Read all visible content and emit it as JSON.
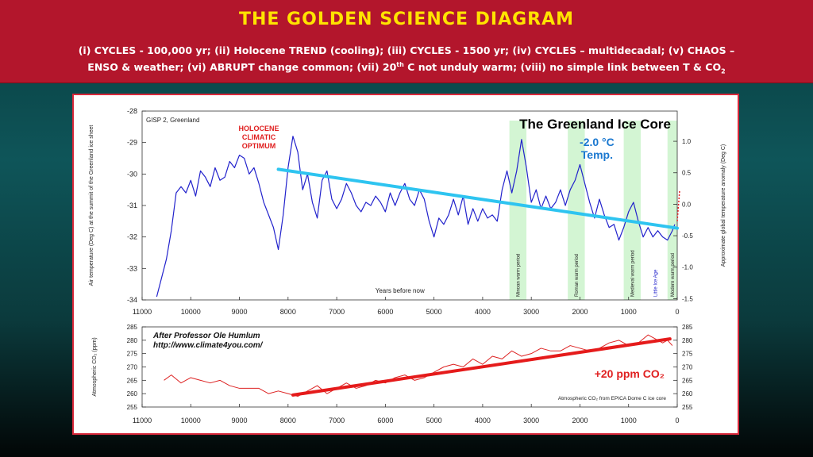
{
  "banner": {
    "title": "THE GOLDEN SCIENCE DIAGRAM",
    "subtitle_line1": "(i) CYCLES - 100,000 yr; (ii) Holocene TREND (cooling); (iii) CYCLES - 1500 yr; (iv) CYCLES – multidecadal; (v) CHAOS –",
    "subtitle_line2_pre": "ENSO & weather; (vi) ABRUPT change common; (vii) 20",
    "subtitle_line2_sup": "th",
    "subtitle_line2_mid": " C not unduly warm; (viii) no simple link between T & CO",
    "subtitle_line2_sub": "2"
  },
  "colors": {
    "banner_bg": "#b3162c",
    "banner_title": "#ffe300",
    "temp_line": "#2222cc",
    "trend_line": "#2ec4f0",
    "co2_line": "#dd2222",
    "co2_trend": "#e51b1b",
    "warm_band": "#d3f5d3"
  },
  "chart_data": [
    {
      "type": "line",
      "source_label": "GISP 2, Greenland",
      "title": "The Greenland Ice Core",
      "ylabel": "Air temperature (Deg C) at the summit of the Greenland ice sheet",
      "ylabel_right": "Approximate global temperature anomaly (Deg C)",
      "xlabel": "Years before now",
      "xlim": [
        11000,
        0
      ],
      "ylim": [
        -34,
        -28
      ],
      "xticks": [
        "11000",
        "10000",
        "9000",
        "8000",
        "7000",
        "6000",
        "5000",
        "4000",
        "3000",
        "2000",
        "1000",
        "0"
      ],
      "yticks_left": [
        "-28",
        "-29",
        "-30",
        "-31",
        "-32",
        "-33",
        "-34"
      ],
      "yticks_right": [
        "1.0",
        "0.5",
        "0.0",
        "-0.5",
        "-1.0",
        "-1.5"
      ],
      "annotations": {
        "holocene": [
          "HOLOCENE",
          "CLIMATIC",
          "OPTIMUM"
        ],
        "temp_change": "-2.0 °C",
        "temp_change_label": "Temp."
      },
      "warm_periods": [
        {
          "label": "Minoan warm period",
          "start": 3450,
          "end": 3100
        },
        {
          "label": "Roman warm period",
          "start": 2250,
          "end": 1900
        },
        {
          "label": "Medieval warm period",
          "start": 1100,
          "end": 750
        },
        {
          "label": "Modern warm period",
          "start": 200,
          "end": 0
        }
      ],
      "little_ice_age_label": "Little Ice Age",
      "series": [
        {
          "x": [
            10700,
            10600,
            10500,
            10400,
            10300,
            10200,
            10100,
            10000,
            9900,
            9800,
            9700,
            9600,
            9500,
            9400,
            9300,
            9200,
            9100,
            9000,
            8900,
            8800,
            8700,
            8600,
            8500,
            8400,
            8300,
            8200,
            8100,
            8000,
            7900,
            7800,
            7700,
            7600,
            7500,
            7400,
            7300,
            7200,
            7100,
            7000,
            6900,
            6800,
            6700,
            6600,
            6500,
            6400,
            6300,
            6200,
            6100,
            6000,
            5900,
            5800,
            5700,
            5600,
            5500,
            5400,
            5300,
            5200,
            5100,
            5000,
            4900,
            4800,
            4700,
            4600,
            4500,
            4400,
            4300,
            4200,
            4100,
            4000,
            3900,
            3800,
            3700,
            3600,
            3500,
            3400,
            3300,
            3200,
            3100,
            3000,
            2900,
            2800,
            2700,
            2600,
            2500,
            2400,
            2300,
            2200,
            2100,
            2000,
            1900,
            1800,
            1700,
            1600,
            1500,
            1400,
            1300,
            1200,
            1100,
            1000,
            900,
            800,
            700,
            600,
            500,
            400,
            300,
            200,
            100,
            50
          ],
          "y": [
            -33.9,
            -33.3,
            -32.7,
            -31.8,
            -30.6,
            -30.4,
            -30.6,
            -30.2,
            -30.7,
            -29.9,
            -30.1,
            -30.4,
            -29.8,
            -30.2,
            -30.1,
            -29.6,
            -29.8,
            -29.4,
            -29.5,
            -30.0,
            -29.8,
            -30.3,
            -30.9,
            -31.3,
            -31.7,
            -32.4,
            -31.3,
            -29.8,
            -28.8,
            -29.3,
            -30.5,
            -30.0,
            -30.9,
            -31.4,
            -30.2,
            -29.9,
            -30.8,
            -31.1,
            -30.8,
            -30.3,
            -30.6,
            -31.0,
            -31.2,
            -30.9,
            -31.0,
            -30.7,
            -30.9,
            -31.2,
            -30.6,
            -31.0,
            -30.6,
            -30.3,
            -30.8,
            -31.0,
            -30.5,
            -30.8,
            -31.5,
            -32.0,
            -31.4,
            -31.6,
            -31.3,
            -30.8,
            -31.3,
            -30.7,
            -31.6,
            -31.1,
            -31.5,
            -31.1,
            -31.4,
            -31.3,
            -31.5,
            -30.5,
            -29.9,
            -30.6,
            -29.9,
            -28.9,
            -29.8,
            -30.9,
            -30.5,
            -31.1,
            -30.7,
            -31.1,
            -30.9,
            -30.5,
            -31.0,
            -30.5,
            -30.2,
            -29.7,
            -30.3,
            -30.9,
            -31.4,
            -30.8,
            -31.3,
            -31.7,
            -31.6,
            -32.1,
            -31.7,
            -31.2,
            -30.9,
            -31.5,
            -32.0,
            -31.7,
            -32.0,
            -31.8,
            -32.0,
            -32.1,
            -31.8,
            -31.6
          ]
        }
      ],
      "trend": {
        "x": [
          8200,
          0
        ],
        "y": [
          -29.85,
          -31.72
        ]
      },
      "modern_rise": {
        "x": [
          0,
          -50
        ],
        "y": [
          -31.5,
          -30.5
        ]
      }
    },
    {
      "type": "line",
      "title": "After Professor  Ole Humlum",
      "subtitle": "http://www.climate4you.com/",
      "ylabel": "Atmospheric CO₂ (ppm)",
      "xlim": [
        11000,
        0
      ],
      "ylim": [
        255,
        285
      ],
      "xticks": [
        "11000",
        "10000",
        "9000",
        "8000",
        "7000",
        "6000",
        "5000",
        "4000",
        "3000",
        "2000",
        "1000",
        "0"
      ],
      "yticks": [
        "285",
        "280",
        "275",
        "270",
        "265",
        "260",
        "255"
      ],
      "annotation": "+20 ppm CO₂",
      "source_note": "Atmospheric CO₂ from EPICA Dome C ice core",
      "series": [
        {
          "x": [
            10550,
            10400,
            10200,
            10000,
            9800,
            9600,
            9400,
            9200,
            9000,
            8800,
            8600,
            8400,
            8200,
            8000,
            7800,
            7600,
            7400,
            7200,
            7000,
            6800,
            6600,
            6400,
            6200,
            6000,
            5800,
            5600,
            5400,
            5200,
            5000,
            4800,
            4600,
            4400,
            4200,
            4000,
            3800,
            3600,
            3400,
            3200,
            3000,
            2800,
            2600,
            2400,
            2200,
            2000,
            1800,
            1600,
            1400,
            1200,
            1000,
            800,
            600,
            400,
            300,
            200,
            100
          ],
          "y": [
            265,
            267,
            264,
            266,
            265,
            264,
            265,
            263,
            262,
            262,
            262,
            260,
            261,
            260,
            259,
            261,
            263,
            260,
            262,
            264,
            262,
            263,
            265,
            264,
            266,
            267,
            265,
            266,
            268,
            270,
            271,
            270,
            273,
            271,
            274,
            273,
            276,
            274,
            275,
            277,
            276,
            276,
            278,
            277,
            276,
            277,
            279,
            280,
            278,
            279,
            282,
            280,
            279,
            280,
            278
          ]
        }
      ],
      "trend": {
        "x": [
          7900,
          150
        ],
        "y": [
          259.5,
          280.5
        ]
      }
    }
  ]
}
